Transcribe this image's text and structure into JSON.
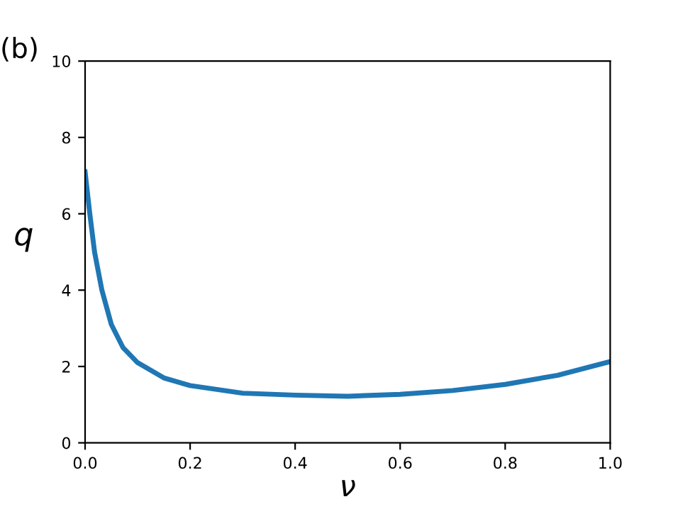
{
  "chart_data": {
    "type": "line",
    "xlabel": "ν",
    "ylabel": "q",
    "annotations": [
      "(b)"
    ],
    "x": [
      0,
      0.009,
      0.018,
      0.032,
      0.05,
      0.072,
      0.1,
      0.15,
      0.2,
      0.3,
      0.4,
      0.5,
      0.6,
      0.7,
      0.8,
      0.9,
      1.0
    ],
    "series": [
      {
        "color": "#1f77b4",
        "values": [
          7.1,
          6.0,
          5.0,
          4.0,
          3.1,
          2.5,
          2.1,
          1.7,
          1.5,
          1.3,
          1.25,
          1.22,
          1.27,
          1.37,
          1.53,
          1.77,
          2.13
        ]
      }
    ],
    "xlim": [
      0,
      1
    ],
    "ylim": [
      0,
      10
    ],
    "xticks": [
      {
        "value": 0,
        "label": "0.0"
      },
      0.2,
      0.4,
      0.6,
      0.8,
      {
        "value": 1,
        "label": "1.0"
      }
    ],
    "yticks": [
      0,
      2,
      4,
      6,
      8,
      10
    ],
    "grid": false,
    "legend": false
  }
}
